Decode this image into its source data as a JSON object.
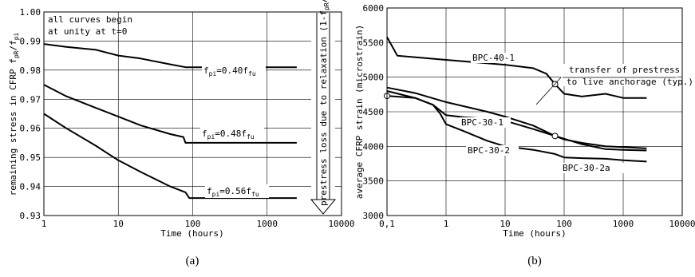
{
  "chart_data": [
    {
      "type": "line",
      "panel_label": "(a)",
      "xscale": "log",
      "xlim": [
        1,
        10000
      ],
      "ylim": [
        0.93,
        1.0
      ],
      "xticks": [
        "1",
        "10",
        "100",
        "1000",
        "10000"
      ],
      "yticks": [
        "0.93",
        "0.94",
        "0.95",
        "0.96",
        "0.97",
        "0.98",
        "0.99",
        "1.00"
      ],
      "xlabel": "Time (hours)",
      "ylabel": "remaining stress in CFRP f_pR/f_pi",
      "grid": true,
      "note": "all curves begin at unity at t=0",
      "arrow_label": "prestress loss due to relaxation (1-f_pR/f_pi)",
      "series": [
        {
          "name": "f_pi=0.40f_fu",
          "x": [
            1,
            2,
            5,
            10,
            20,
            50,
            80,
            90,
            100,
            200,
            500,
            1000,
            2500
          ],
          "y": [
            0.989,
            0.988,
            0.987,
            0.985,
            0.984,
            0.982,
            0.981,
            0.981,
            0.981,
            0.981,
            0.981,
            0.981,
            0.981
          ]
        },
        {
          "name": "f_pi=0.48f_fu",
          "x": [
            1,
            2,
            5,
            10,
            20,
            50,
            75,
            80,
            100,
            200,
            500,
            1000,
            2500
          ],
          "y": [
            0.975,
            0.971,
            0.967,
            0.964,
            0.961,
            0.958,
            0.957,
            0.955,
            0.955,
            0.955,
            0.955,
            0.955,
            0.955
          ]
        },
        {
          "name": "f_pi=0.56f_fu",
          "x": [
            1,
            2,
            5,
            10,
            20,
            50,
            80,
            90,
            100,
            200,
            500,
            1000,
            2500
          ],
          "y": [
            0.965,
            0.96,
            0.954,
            0.949,
            0.945,
            0.94,
            0.938,
            0.936,
            0.936,
            0.936,
            0.936,
            0.936,
            0.936
          ]
        }
      ],
      "series_labels": [
        {
          "base": "f",
          "sub1": "pi",
          "mid": "=0.40f",
          "sub2": "fu"
        },
        {
          "base": "f",
          "sub1": "pi",
          "mid": "=0.48f",
          "sub2": "fu"
        },
        {
          "base": "f",
          "sub1": "pi",
          "mid": "=0.56f",
          "sub2": "fu"
        }
      ]
    },
    {
      "type": "line",
      "panel_label": "(b)",
      "xscale": "log",
      "xlim": [
        0.1,
        10000
      ],
      "ylim": [
        3000,
        6000
      ],
      "xticks": [
        "0,1",
        "1",
        "10",
        "100",
        "1000",
        "10000"
      ],
      "yticks": [
        "3000",
        "3500",
        "4000",
        "4500",
        "5000",
        "5500",
        "6000"
      ],
      "xlabel": "Time (hours)",
      "ylabel": "average CFRP strain (microstrain)",
      "grid": true,
      "annotation": [
        "transfer of prestress",
        "to live anchorage (typ.)"
      ],
      "series": [
        {
          "name": "BPC-40-1",
          "x": [
            0.1,
            0.15,
            1,
            10,
            30,
            50,
            70,
            100,
            200,
            500,
            1000,
            2500
          ],
          "y": [
            5580,
            5310,
            5250,
            5180,
            5130,
            5050,
            4900,
            4760,
            4720,
            4760,
            4700,
            4700
          ]
        },
        {
          "name": "BPC-30-1",
          "x": [
            0.1,
            0.3,
            1,
            5,
            10,
            30,
            70,
            100,
            200,
            500,
            1000,
            2500
          ],
          "y": [
            4850,
            4770,
            4640,
            4500,
            4430,
            4300,
            4150,
            4100,
            4050,
            4000,
            3990,
            3970
          ]
        },
        {
          "name": "BPC-30-2",
          "x": [
            0.1,
            0.3,
            0.6,
            1,
            2,
            5,
            10,
            30,
            70,
            100,
            200,
            500,
            1000,
            2500
          ],
          "y": [
            4730,
            4700,
            4600,
            4450,
            4420,
            4400,
            4370,
            4250,
            4150,
            4110,
            4030,
            3960,
            3950,
            3940
          ]
        },
        {
          "name": "BPC-30-2a",
          "x": [
            0.1,
            0.3,
            0.6,
            0.8,
            1,
            2,
            5,
            10,
            30,
            70,
            100,
            200,
            500,
            1000,
            2500
          ],
          "y": [
            4800,
            4700,
            4600,
            4470,
            4320,
            4220,
            4080,
            4000,
            3950,
            3890,
            3840,
            3830,
            3820,
            3800,
            3780
          ]
        }
      ],
      "markers": [
        {
          "x": 0.1,
          "y": 4730
        },
        {
          "x": 70,
          "y": 4900
        },
        {
          "x": 70,
          "y": 4150
        }
      ]
    }
  ]
}
